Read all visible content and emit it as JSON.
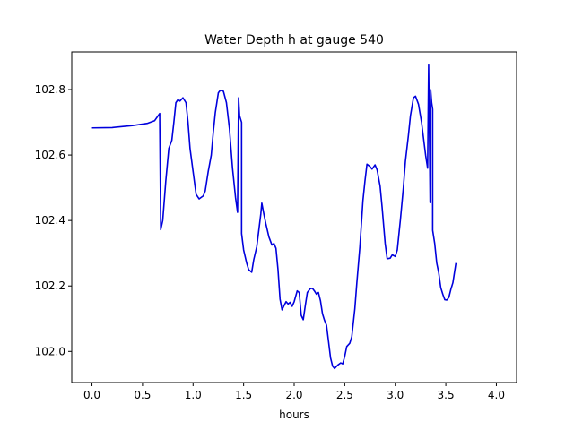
{
  "chart_data": {
    "type": "line",
    "title": "Water Depth h at gauge 540",
    "xlabel": "hours",
    "ylabel": "",
    "xlim": [
      -0.2,
      4.2
    ],
    "ylim": [
      101.905,
      102.915
    ],
    "xticks": [
      0.0,
      0.5,
      1.0,
      1.5,
      2.0,
      2.5,
      3.0,
      3.5,
      4.0
    ],
    "xtick_labels": [
      "0.0",
      "0.5",
      "1.0",
      "1.5",
      "2.0",
      "2.5",
      "3.0",
      "3.5",
      "4.0"
    ],
    "yticks": [
      102.0,
      102.2,
      102.4,
      102.6,
      102.8
    ],
    "ytick_labels": [
      "102.0",
      "102.2",
      "102.4",
      "102.6",
      "102.8"
    ],
    "grid": false,
    "series": [
      {
        "color": "#0000dd",
        "points": [
          [
            0.0,
            102.683
          ],
          [
            0.2,
            102.684
          ],
          [
            0.4,
            102.69
          ],
          [
            0.55,
            102.697
          ],
          [
            0.62,
            102.705
          ],
          [
            0.67,
            102.727
          ],
          [
            0.67,
            102.715
          ],
          [
            0.68,
            102.372
          ],
          [
            0.7,
            102.4
          ],
          [
            0.73,
            102.52
          ],
          [
            0.76,
            102.62
          ],
          [
            0.79,
            102.645
          ],
          [
            0.81,
            102.7
          ],
          [
            0.83,
            102.76
          ],
          [
            0.85,
            102.769
          ],
          [
            0.87,
            102.765
          ],
          [
            0.9,
            102.775
          ],
          [
            0.93,
            102.76
          ],
          [
            0.95,
            102.7
          ],
          [
            0.97,
            102.62
          ],
          [
            1.0,
            102.55
          ],
          [
            1.03,
            102.48
          ],
          [
            1.06,
            102.466
          ],
          [
            1.1,
            102.475
          ],
          [
            1.12,
            102.49
          ],
          [
            1.15,
            102.55
          ],
          [
            1.18,
            102.6
          ],
          [
            1.2,
            102.67
          ],
          [
            1.22,
            102.73
          ],
          [
            1.25,
            102.79
          ],
          [
            1.27,
            102.798
          ],
          [
            1.3,
            102.795
          ],
          [
            1.33,
            102.76
          ],
          [
            1.36,
            102.68
          ],
          [
            1.39,
            102.56
          ],
          [
            1.42,
            102.47
          ],
          [
            1.44,
            102.425
          ],
          [
            1.45,
            102.775
          ],
          [
            1.46,
            102.72
          ],
          [
            1.48,
            102.7
          ],
          [
            1.48,
            102.36
          ],
          [
            1.5,
            102.31
          ],
          [
            1.53,
            102.27
          ],
          [
            1.55,
            102.25
          ],
          [
            1.58,
            102.242
          ],
          [
            1.6,
            102.28
          ],
          [
            1.63,
            102.32
          ],
          [
            1.65,
            102.37
          ],
          [
            1.67,
            102.42
          ],
          [
            1.68,
            102.453
          ],
          [
            1.7,
            102.42
          ],
          [
            1.72,
            102.39
          ],
          [
            1.75,
            102.35
          ],
          [
            1.78,
            102.325
          ],
          [
            1.8,
            102.33
          ],
          [
            1.82,
            102.315
          ],
          [
            1.84,
            102.25
          ],
          [
            1.86,
            102.16
          ],
          [
            1.88,
            102.127
          ],
          [
            1.9,
            102.14
          ],
          [
            1.92,
            102.152
          ],
          [
            1.94,
            102.145
          ],
          [
            1.96,
            102.15
          ],
          [
            1.98,
            102.138
          ],
          [
            2.0,
            102.152
          ],
          [
            2.03,
            102.185
          ],
          [
            2.05,
            102.18
          ],
          [
            2.07,
            102.11
          ],
          [
            2.09,
            102.097
          ],
          [
            2.11,
            102.14
          ],
          [
            2.13,
            102.18
          ],
          [
            2.16,
            102.192
          ],
          [
            2.18,
            102.193
          ],
          [
            2.2,
            102.185
          ],
          [
            2.22,
            102.175
          ],
          [
            2.24,
            102.18
          ],
          [
            2.26,
            102.155
          ],
          [
            2.28,
            102.115
          ],
          [
            2.3,
            102.095
          ],
          [
            2.32,
            102.08
          ],
          [
            2.34,
            102.03
          ],
          [
            2.36,
            101.98
          ],
          [
            2.38,
            101.955
          ],
          [
            2.4,
            101.948
          ],
          [
            2.43,
            101.958
          ],
          [
            2.46,
            101.965
          ],
          [
            2.48,
            101.962
          ],
          [
            2.5,
            101.985
          ],
          [
            2.52,
            102.015
          ],
          [
            2.55,
            102.025
          ],
          [
            2.57,
            102.045
          ],
          [
            2.6,
            102.13
          ],
          [
            2.62,
            102.21
          ],
          [
            2.65,
            102.32
          ],
          [
            2.68,
            102.46
          ],
          [
            2.7,
            102.52
          ],
          [
            2.72,
            102.572
          ],
          [
            2.75,
            102.565
          ],
          [
            2.77,
            102.557
          ],
          [
            2.8,
            102.57
          ],
          [
            2.82,
            102.555
          ],
          [
            2.85,
            102.505
          ],
          [
            2.87,
            102.44
          ],
          [
            2.9,
            102.33
          ],
          [
            2.92,
            102.283
          ],
          [
            2.95,
            102.285
          ],
          [
            2.97,
            102.295
          ],
          [
            3.0,
            102.29
          ],
          [
            3.02,
            102.31
          ],
          [
            3.05,
            102.4
          ],
          [
            3.08,
            102.5
          ],
          [
            3.1,
            102.58
          ],
          [
            3.13,
            102.66
          ],
          [
            3.15,
            102.72
          ],
          [
            3.18,
            102.775
          ],
          [
            3.2,
            102.78
          ],
          [
            3.23,
            102.755
          ],
          [
            3.26,
            102.7
          ],
          [
            3.28,
            102.65
          ],
          [
            3.3,
            102.6
          ],
          [
            3.32,
            102.56
          ],
          [
            3.33,
            102.875
          ],
          [
            3.34,
            102.61
          ],
          [
            3.345,
            102.455
          ],
          [
            3.35,
            102.8
          ],
          [
            3.36,
            102.76
          ],
          [
            3.37,
            102.74
          ],
          [
            3.37,
            102.37
          ],
          [
            3.39,
            102.33
          ],
          [
            3.41,
            102.27
          ],
          [
            3.43,
            102.24
          ],
          [
            3.45,
            102.195
          ],
          [
            3.47,
            102.175
          ],
          [
            3.49,
            102.158
          ],
          [
            3.51,
            102.157
          ],
          [
            3.53,
            102.165
          ],
          [
            3.55,
            102.19
          ],
          [
            3.57,
            102.21
          ],
          [
            3.58,
            102.23
          ],
          [
            3.6,
            102.27
          ]
        ]
      }
    ]
  }
}
